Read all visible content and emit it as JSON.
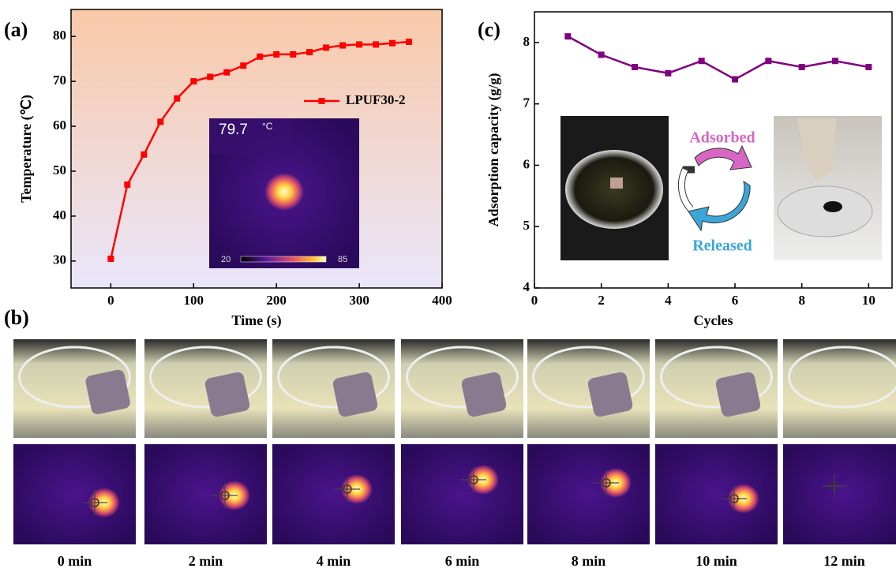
{
  "chart_data": [
    {
      "type": "line",
      "panel": "(a)",
      "x_label": "Time (s)",
      "y_label": "Temperature (℃)",
      "x": [
        0,
        20,
        40,
        60,
        80,
        100,
        120,
        140,
        160,
        180,
        200,
        220,
        240,
        260,
        280,
        300,
        320,
        340,
        360
      ],
      "series": [
        {
          "name": "LPUF30-2",
          "color": "#ff0000",
          "values": [
            30.5,
            47,
            53.7,
            61,
            66.2,
            70,
            71,
            72,
            73.5,
            75.5,
            76,
            76,
            76.5,
            77.5,
            78,
            78.2,
            78.2,
            78.5,
            78.8
          ]
        }
      ],
      "xlim": [
        -48,
        400
      ],
      "xticks": [
        0,
        100,
        200,
        300,
        400
      ],
      "ylim": [
        24,
        86
      ],
      "yticks": [
        30,
        40,
        50,
        60,
        70,
        80
      ],
      "legend": "upper right"
    },
    {
      "type": "line",
      "panel": "(c)",
      "x_label": "Cycles",
      "y_label": "Adsorption capacity (g/g)",
      "x": [
        1,
        2,
        3,
        4,
        5,
        6,
        7,
        8,
        9,
        10
      ],
      "series": [
        {
          "name": null,
          "color": "#800080",
          "values": [
            8.1,
            7.8,
            7.6,
            7.5,
            7.7,
            7.4,
            7.7,
            7.6,
            7.7,
            7.6
          ]
        }
      ],
      "xlim": [
        0,
        10.7
      ],
      "xticks": [
        0,
        2,
        4,
        6,
        8,
        10
      ],
      "ylim": [
        4,
        8.5
      ],
      "yticks": [
        4,
        5,
        6,
        7,
        8
      ]
    }
  ],
  "inset_a": {
    "reading": "79.7",
    "unit": "°C",
    "scale_min": "20",
    "scale_max": "85"
  },
  "inset_c": {
    "top": "Adsorbed",
    "bottom": "Released"
  },
  "panel_b": {
    "label": "(b)",
    "times": [
      "0 min",
      "2 min",
      "4 min",
      "6 min",
      "8 min",
      "10 min",
      "12 min"
    ]
  }
}
